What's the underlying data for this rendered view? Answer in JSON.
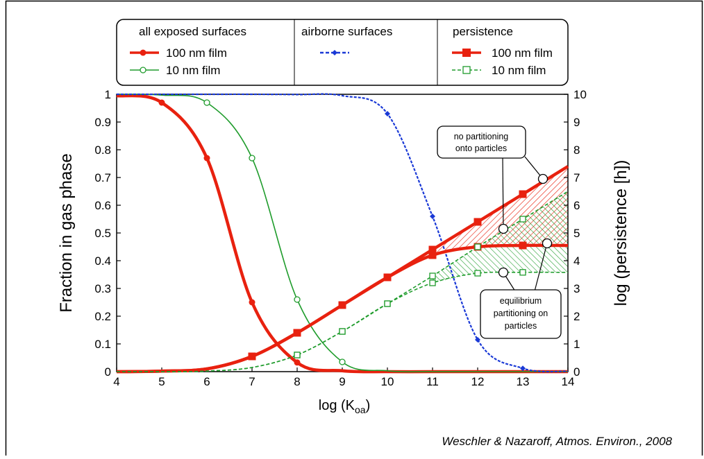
{
  "chart_data": {
    "type": "line",
    "xlabel": "log (K",
    "xlabel_sub": "oa",
    "xlabel_close": ")",
    "ylabel_left": "Fraction in gas phase",
    "ylabel_right": "log (persistence [h])",
    "xlim": [
      4,
      14
    ],
    "ylim_left": [
      0,
      1
    ],
    "ylim_right": [
      0,
      10
    ],
    "x_ticks": [
      4,
      5,
      6,
      7,
      8,
      9,
      10,
      11,
      12,
      13,
      14
    ],
    "y_left_ticks": [
      "0",
      "0.1",
      "0.2",
      "0.3",
      "0.4",
      "0.5",
      "0.6",
      "0.7",
      "0.8",
      "0.9",
      "1"
    ],
    "y_right_ticks": [
      "0",
      "1",
      "2",
      "3",
      "4",
      "5",
      "6",
      "7",
      "8",
      "9",
      "10"
    ],
    "grid": false,
    "legend": {
      "groups": [
        {
          "title": "all exposed surfaces",
          "entries": [
            "100 nm film",
            "10 nm film"
          ]
        },
        {
          "title": "airborne surfaces",
          "entries": [
            ""
          ]
        },
        {
          "title": "persistence",
          "entries": [
            "100 nm film",
            "10 nm film"
          ]
        }
      ],
      "placement": "top"
    },
    "series": [
      {
        "name": "100 nm film",
        "group": "all exposed surfaces",
        "axis": "left",
        "color": "#e8210f",
        "marker": "filled-circle",
        "x": [
          4,
          5,
          6,
          7,
          8,
          9,
          10,
          11,
          12,
          13,
          14
        ],
        "y": [
          0.995,
          0.97,
          0.77,
          0.25,
          0.033,
          0.003,
          0.0,
          0.0,
          0.0,
          0.0,
          0.0
        ]
      },
      {
        "name": "10 nm film",
        "group": "all exposed surfaces",
        "axis": "left",
        "color": "#1f9c2c",
        "marker": "open-circle",
        "x": [
          4,
          5,
          6,
          7,
          8,
          9,
          10,
          11,
          12,
          13,
          14
        ],
        "y": [
          1.0,
          0.997,
          0.97,
          0.77,
          0.26,
          0.035,
          0.003,
          0.0,
          0.0,
          0.0,
          0.0
        ]
      },
      {
        "group": "airborne surfaces",
        "axis": "left",
        "color": "#1a39d6",
        "marker": "small-diamond",
        "dashed": true,
        "x": [
          4,
          5,
          6,
          7,
          8,
          9,
          10,
          11,
          12,
          13,
          14
        ],
        "y": [
          1.0,
          1.0,
          1.0,
          1.0,
          0.999,
          0.995,
          0.93,
          0.56,
          0.115,
          0.012,
          0.001
        ]
      },
      {
        "name": "100 nm film (no partitioning onto particles)",
        "group": "persistence",
        "axis": "right",
        "color": "#e8210f",
        "marker": "filled-square",
        "x": [
          4,
          5,
          6,
          7,
          8,
          9,
          10,
          11,
          12,
          13,
          14
        ],
        "y": [
          0.0,
          0.02,
          0.1,
          0.55,
          1.4,
          2.4,
          3.4,
          4.4,
          5.4,
          6.4,
          7.4
        ]
      },
      {
        "name": "100 nm film (equilibrium partitioning on particles)",
        "group": "persistence",
        "axis": "right",
        "color": "#e8210f",
        "marker": "filled-square",
        "x": [
          4,
          5,
          6,
          7,
          8,
          9,
          10,
          11,
          12,
          13,
          14
        ],
        "y": [
          0.0,
          0.02,
          0.1,
          0.55,
          1.4,
          2.4,
          3.4,
          4.2,
          4.5,
          4.55,
          4.55
        ]
      },
      {
        "name": "10 nm film (no partitioning onto particles)",
        "group": "persistence",
        "axis": "right",
        "color": "#1f9c2c",
        "marker": "open-square",
        "dashed": true,
        "x": [
          4,
          5,
          6,
          7,
          8,
          9,
          10,
          11,
          12,
          13,
          14
        ],
        "y": [
          0.0,
          0.0,
          0.02,
          0.15,
          0.6,
          1.45,
          2.45,
          3.45,
          4.5,
          5.5,
          6.5
        ]
      },
      {
        "name": "10 nm film (equilibrium partitioning on particles)",
        "group": "persistence",
        "axis": "right",
        "color": "#1f9c2c",
        "marker": "open-square",
        "dashed": true,
        "x": [
          4,
          5,
          6,
          7,
          8,
          9,
          10,
          11,
          12,
          13,
          14
        ],
        "y": [
          0.0,
          0.0,
          0.02,
          0.15,
          0.6,
          1.45,
          2.45,
          3.2,
          3.55,
          3.58,
          3.58
        ]
      }
    ],
    "callouts": [
      {
        "lines": [
          "no partitioning",
          "onto particles"
        ]
      },
      {
        "lines": [
          "equilibrium",
          "partitioning on",
          "particles"
        ]
      }
    ]
  },
  "credit": "Weschler & Nazaroff, Atmos. Environ., 2008"
}
